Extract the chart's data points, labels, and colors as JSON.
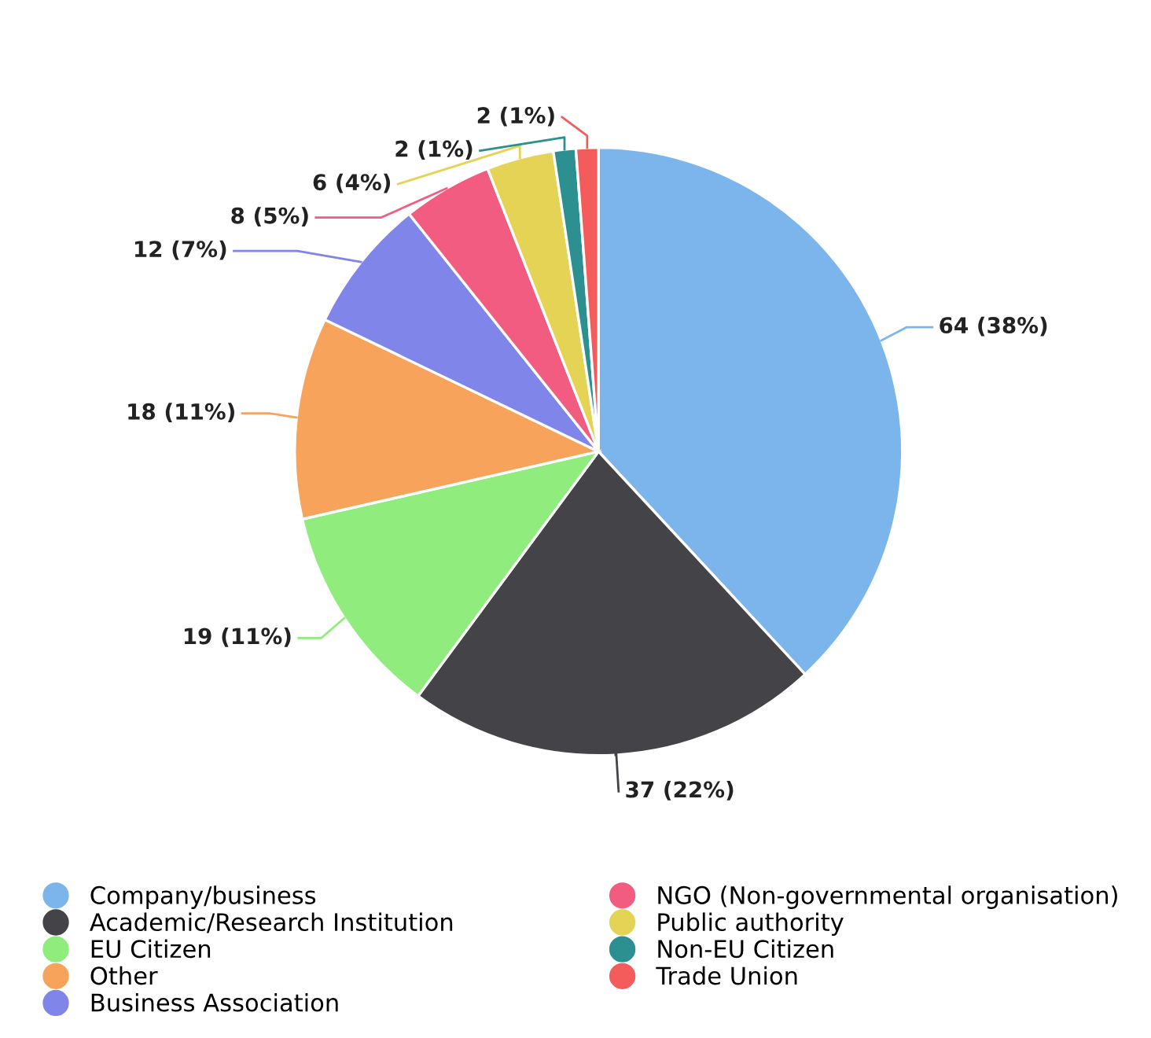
{
  "chart_data": {
    "type": "pie",
    "categories": [
      "Company/business",
      "Academic/Research Institution",
      "EU Citizen",
      "Other",
      "Business Association",
      "NGO (Non-governmental organisation)",
      "Public authority",
      "Non-EU Citizen",
      "Trade Union"
    ],
    "values": [
      64,
      37,
      19,
      18,
      12,
      8,
      6,
      2,
      2
    ],
    "colors": [
      "#7cb5ec",
      "#434348",
      "#90ed7d",
      "#f7a35c",
      "#8085e9",
      "#f15c80",
      "#e4d354",
      "#2b908f",
      "#f45b5b"
    ],
    "value_labels": [
      "64 (38%)",
      "37 (22%)",
      "19 (11%)",
      "18 (11%)",
      "12 (7%)",
      "8 (5%)",
      "6 (4%)",
      "2 (1%)",
      "2 (1%)"
    ],
    "legend": "bottom"
  }
}
